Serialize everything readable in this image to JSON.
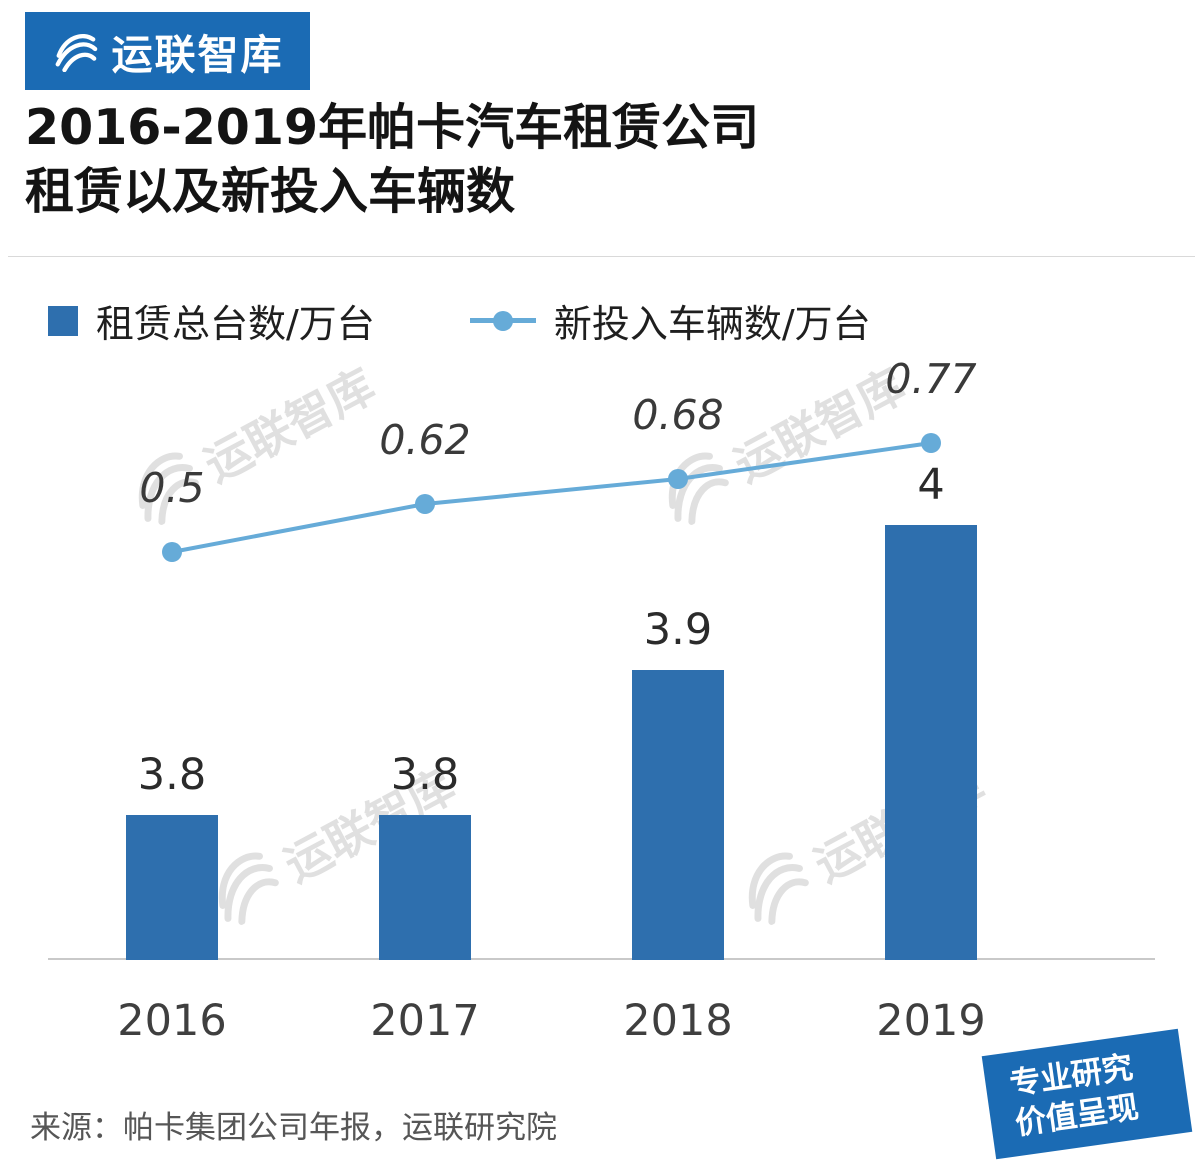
{
  "logo": {
    "text": "运联智库",
    "bg_color": "#1b6bb4"
  },
  "title": {
    "line1": "2016-2019年帕卡汽车租赁公司",
    "line2": "租赁以及新投入车辆数"
  },
  "legend": {
    "bar_label": "租赁总台数/万台",
    "line_label": "新投入车辆数/万台"
  },
  "chart_data": {
    "type": "bar+line",
    "categories": [
      "2016",
      "2017",
      "2018",
      "2019"
    ],
    "series": [
      {
        "name": "租赁总台数/万台",
        "type": "bar",
        "values": [
          3.8,
          3.8,
          3.9,
          4
        ],
        "labels": [
          "3.8",
          "3.8",
          "3.9",
          "4"
        ],
        "color": "#2e6fae"
      },
      {
        "name": "新投入车辆数/万台",
        "type": "line",
        "values": [
          0.5,
          0.62,
          0.68,
          0.77
        ],
        "labels": [
          "0.5",
          "0.62",
          "0.68",
          "0.77"
        ],
        "color": "#66abd8"
      }
    ],
    "title": "2016-2019年帕卡汽车租赁公司租赁以及新投入车辆数",
    "xlabel": "",
    "ylabel": "",
    "bar_ylim": [
      3.7,
      4.05
    ],
    "line_ylim": [
      0,
      1
    ],
    "grid": false,
    "legend_position": "top",
    "value_labels_shown": true
  },
  "watermark": {
    "text": "运联智库"
  },
  "source": "来源：帕卡集团公司年报，运联研究院",
  "badge": {
    "line1": "专业研究",
    "line2": "价值呈现",
    "bg_color": "#1b6bb4"
  }
}
